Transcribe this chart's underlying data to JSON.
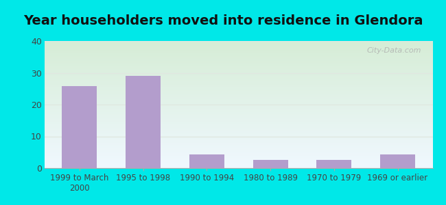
{
  "title": "Year householders moved into residence in Glendora",
  "categories": [
    "1999 to March\n2000",
    "1995 to 1998",
    "1990 to 1994",
    "1980 to 1989",
    "1970 to 1979",
    "1969 or earlier"
  ],
  "values": [
    25.7,
    29.0,
    4.4,
    2.5,
    2.5,
    4.4
  ],
  "bar_color": "#b39dcc",
  "ylim": [
    0,
    40
  ],
  "yticks": [
    0,
    10,
    20,
    30,
    40
  ],
  "background_outer": "#00e8e8",
  "gradient_top": "#d6edd6",
  "gradient_bottom": "#f0f8ff",
  "grid_color": "#e0e8e0",
  "watermark": "City-Data.com",
  "title_fontsize": 14,
  "tick_fontsize": 8.5,
  "bar_width": 0.55
}
